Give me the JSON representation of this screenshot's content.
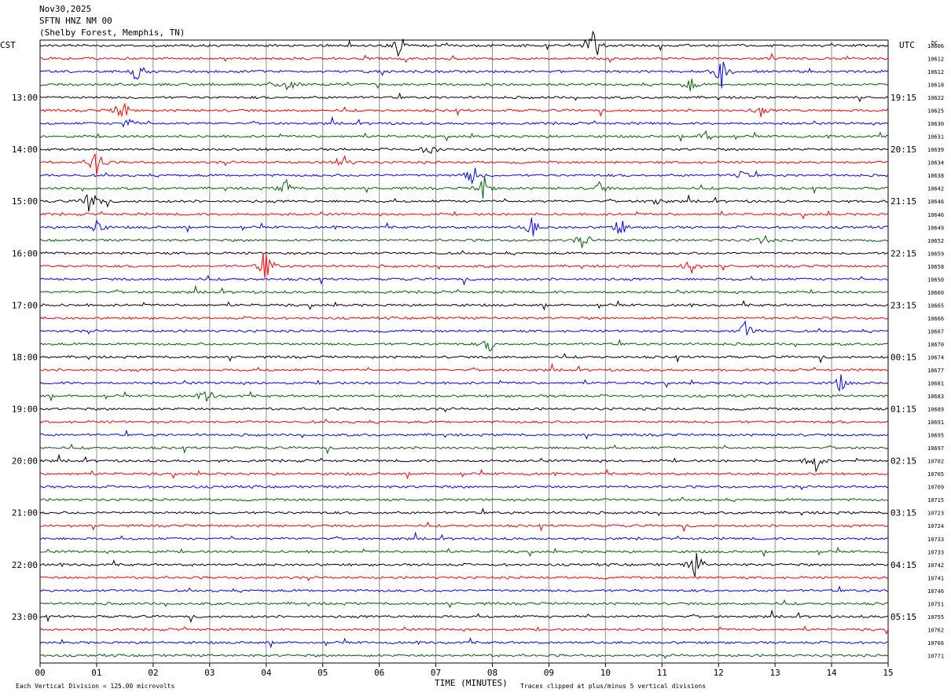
{
  "header": {
    "date": "Nov30,2025",
    "station": "SFTN HNZ NM 00",
    "location": "(Shelby Forest, Memphis, TN)"
  },
  "labels": {
    "left_tz": "CST",
    "right_tz": "UTC",
    "dc": "DC"
  },
  "footer": {
    "scale_note": "Each Vertical Division = 125.00 microvolts",
    "xaxis_title": "TIME (MINUTES)",
    "clip_note": "Traces clipped at plus/minus 5 vertical divisions"
  },
  "colors": {
    "trace_cycle": [
      "#000000",
      "#ff0000",
      "#0000ff",
      "#006400"
    ],
    "grid": "#909090"
  },
  "chart_data": {
    "type": "seismogram-helicorder",
    "title": "SFTN HNZ NM 00",
    "xlabel": "TIME (MINUTES)",
    "xlim": [
      0,
      15
    ],
    "x_ticks": [
      "00",
      "01",
      "02",
      "03",
      "04",
      "05",
      "06",
      "07",
      "08",
      "09",
      "10",
      "11",
      "12",
      "13",
      "14",
      "15"
    ],
    "minutes_per_line": 15,
    "lines_count": 48,
    "left_time_labels": [
      "13:00",
      "14:00",
      "15:00",
      "16:00",
      "17:00",
      "18:00",
      "19:00",
      "20:00",
      "21:00",
      "22:00",
      "23:00"
    ],
    "right_time_labels": [
      "19:15",
      "20:15",
      "21:15",
      "22:15",
      "23:15",
      "00:15",
      "01:15",
      "02:15",
      "03:15",
      "04:15",
      "05:15"
    ],
    "dc_offsets": [
      10606,
      10612,
      10612,
      10618,
      10622,
      10625,
      10630,
      10631,
      10639,
      10634,
      10638,
      10642,
      10646,
      10646,
      10649,
      10652,
      10659,
      10658,
      10650,
      10660,
      10665,
      10666,
      10667,
      10670,
      10674,
      10677,
      10681,
      10683,
      10689,
      10691,
      10695,
      10697,
      10702,
      10705,
      10709,
      10715,
      10723,
      10724,
      10733,
      10733,
      10742,
      10741,
      10746,
      10751,
      10755,
      10762,
      10766,
      10771
    ],
    "events": [
      {
        "line": 0,
        "minute": 6.35,
        "amplitude": 1.8
      },
      {
        "line": 0,
        "minute": 9.8,
        "amplitude": 2.6
      },
      {
        "line": 2,
        "minute": 1.7,
        "amplitude": 1.2
      },
      {
        "line": 2,
        "minute": 12.05,
        "amplitude": 2.2
      },
      {
        "line": 3,
        "minute": 4.4,
        "amplitude": 1.0
      },
      {
        "line": 3,
        "minute": 11.5,
        "amplitude": 1.0
      },
      {
        "line": 5,
        "minute": 1.45,
        "amplitude": 1.8
      },
      {
        "line": 5,
        "minute": 12.75,
        "amplitude": 0.8
      },
      {
        "line": 6,
        "minute": 1.55,
        "amplitude": 1.0
      },
      {
        "line": 7,
        "minute": 11.8,
        "amplitude": 1.3
      },
      {
        "line": 8,
        "minute": 6.9,
        "amplitude": 1.2
      },
      {
        "line": 9,
        "minute": 1.0,
        "amplitude": 3.0
      },
      {
        "line": 9,
        "minute": 5.35,
        "amplitude": 1.3
      },
      {
        "line": 10,
        "minute": 7.65,
        "amplitude": 1.6
      },
      {
        "line": 10,
        "minute": 12.4,
        "amplitude": 0.8
      },
      {
        "line": 11,
        "minute": 4.35,
        "amplitude": 1.2
      },
      {
        "line": 11,
        "minute": 7.85,
        "amplitude": 1.8
      },
      {
        "line": 11,
        "minute": 9.9,
        "amplitude": 0.9
      },
      {
        "line": 12,
        "minute": 0.9,
        "amplitude": 2.5
      },
      {
        "line": 12,
        "minute": 10.9,
        "amplitude": 0.7
      },
      {
        "line": 14,
        "minute": 1.0,
        "amplitude": 1.2
      },
      {
        "line": 14,
        "minute": 8.7,
        "amplitude": 1.4
      },
      {
        "line": 14,
        "minute": 10.25,
        "amplitude": 1.5
      },
      {
        "line": 15,
        "minute": 9.6,
        "amplitude": 1.3
      },
      {
        "line": 15,
        "minute": 12.8,
        "amplitude": 0.8
      },
      {
        "line": 17,
        "minute": 4.0,
        "amplitude": 2.5
      },
      {
        "line": 17,
        "minute": 11.5,
        "amplitude": 1.4
      },
      {
        "line": 22,
        "minute": 12.5,
        "amplitude": 1.8
      },
      {
        "line": 23,
        "minute": 7.95,
        "amplitude": 1.1
      },
      {
        "line": 26,
        "minute": 14.15,
        "amplitude": 1.2
      },
      {
        "line": 27,
        "minute": 2.95,
        "amplitude": 1.1
      },
      {
        "line": 32,
        "minute": 13.7,
        "amplitude": 2.0
      },
      {
        "line": 40,
        "minute": 11.6,
        "amplitude": 2.2
      }
    ]
  }
}
